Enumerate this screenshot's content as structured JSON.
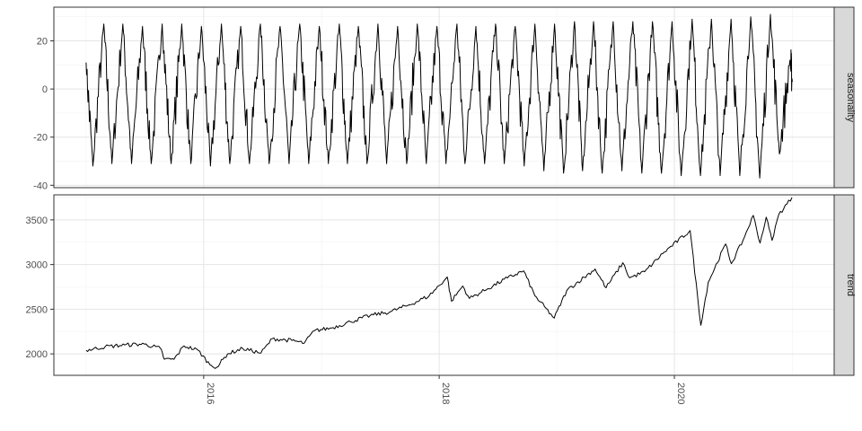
{
  "chart_data": {
    "type": "line",
    "layout": "faceted",
    "facet_strip_position": "right",
    "grid": true,
    "x_axis": {
      "range": [
        "2015-01-01",
        "2021-01-31"
      ],
      "ticks": [
        {
          "label": "2016",
          "date": "2016-01-01"
        },
        {
          "label": "2018",
          "date": "2018-01-01"
        },
        {
          "label": "2020",
          "date": "2020-01-01"
        }
      ],
      "label_rotation": "vertical"
    },
    "panels": [
      {
        "strip_label": "seasonality",
        "ylim": [
          -41,
          34
        ],
        "y_ticks": [
          20,
          0,
          -20,
          -40
        ],
        "y_tick_labels": [
          "20",
          "0",
          "-20",
          "-40"
        ],
        "period": "2 months",
        "peaks": [
          {
            "date": "2015-01-01",
            "value": 11
          },
          {
            "date": "2015-01-22",
            "value": -32
          },
          {
            "date": "2015-02-25",
            "value": 27
          },
          {
            "date": "2015-03-22",
            "value": -31
          },
          {
            "date": "2015-04-25",
            "value": 27
          },
          {
            "date": "2015-05-22",
            "value": -31
          },
          {
            "date": "2015-06-25",
            "value": 26
          },
          {
            "date": "2015-07-22",
            "value": -31
          },
          {
            "date": "2015-08-25",
            "value": 27
          },
          {
            "date": "2015-09-22",
            "value": -31
          },
          {
            "date": "2015-10-25",
            "value": 27
          },
          {
            "date": "2015-11-22",
            "value": -31
          },
          {
            "date": "2015-12-25",
            "value": 26
          },
          {
            "date": "2016-01-22",
            "value": -32
          },
          {
            "date": "2016-02-25",
            "value": 27
          },
          {
            "date": "2016-03-22",
            "value": -31
          },
          {
            "date": "2016-04-25",
            "value": 26
          },
          {
            "date": "2016-05-22",
            "value": -31
          },
          {
            "date": "2016-06-25",
            "value": 27
          },
          {
            "date": "2016-07-22",
            "value": -31
          },
          {
            "date": "2016-08-25",
            "value": 26
          },
          {
            "date": "2016-09-22",
            "value": -31
          },
          {
            "date": "2016-10-25",
            "value": 27
          },
          {
            "date": "2016-11-22",
            "value": -31
          },
          {
            "date": "2016-12-25",
            "value": 26
          },
          {
            "date": "2017-01-22",
            "value": -31
          },
          {
            "date": "2017-02-25",
            "value": 27
          },
          {
            "date": "2017-03-22",
            "value": -31
          },
          {
            "date": "2017-04-25",
            "value": 26
          },
          {
            "date": "2017-05-22",
            "value": -31
          },
          {
            "date": "2017-06-25",
            "value": 27
          },
          {
            "date": "2017-07-22",
            "value": -31
          },
          {
            "date": "2017-08-25",
            "value": 26
          },
          {
            "date": "2017-09-22",
            "value": -31
          },
          {
            "date": "2017-10-25",
            "value": 27
          },
          {
            "date": "2017-11-22",
            "value": -31
          },
          {
            "date": "2017-12-25",
            "value": 26
          },
          {
            "date": "2018-01-22",
            "value": -31
          },
          {
            "date": "2018-02-25",
            "value": 27
          },
          {
            "date": "2018-03-22",
            "value": -31
          },
          {
            "date": "2018-04-25",
            "value": 26
          },
          {
            "date": "2018-05-22",
            "value": -31
          },
          {
            "date": "2018-06-25",
            "value": 27
          },
          {
            "date": "2018-07-22",
            "value": -31
          },
          {
            "date": "2018-08-25",
            "value": 26
          },
          {
            "date": "2018-09-22",
            "value": -32
          },
          {
            "date": "2018-10-25",
            "value": 27
          },
          {
            "date": "2018-11-22",
            "value": -34
          },
          {
            "date": "2018-12-25",
            "value": 27
          },
          {
            "date": "2019-01-22",
            "value": -35
          },
          {
            "date": "2019-02-25",
            "value": 28
          },
          {
            "date": "2019-03-22",
            "value": -34
          },
          {
            "date": "2019-04-25",
            "value": 28
          },
          {
            "date": "2019-05-22",
            "value": -35
          },
          {
            "date": "2019-06-25",
            "value": 28
          },
          {
            "date": "2019-07-22",
            "value": -34
          },
          {
            "date": "2019-08-25",
            "value": 28
          },
          {
            "date": "2019-09-22",
            "value": -35
          },
          {
            "date": "2019-10-25",
            "value": 28
          },
          {
            "date": "2019-11-22",
            "value": -35
          },
          {
            "date": "2019-12-25",
            "value": 28
          },
          {
            "date": "2020-01-22",
            "value": -36
          },
          {
            "date": "2020-02-25",
            "value": 29
          },
          {
            "date": "2020-03-22",
            "value": -36
          },
          {
            "date": "2020-04-25",
            "value": 29
          },
          {
            "date": "2020-05-22",
            "value": -36
          },
          {
            "date": "2020-06-25",
            "value": 29
          },
          {
            "date": "2020-07-22",
            "value": -36
          },
          {
            "date": "2020-08-25",
            "value": 30
          },
          {
            "date": "2020-09-22",
            "value": -37
          },
          {
            "date": "2020-10-25",
            "value": 31
          },
          {
            "date": "2020-11-22",
            "value": -27
          },
          {
            "date": "2020-12-25",
            "value": 12
          },
          {
            "date": "2021-01-01",
            "value": 3
          }
        ]
      },
      {
        "strip_label": "trend",
        "ylim": [
          1760,
          3780
        ],
        "y_ticks": [
          3500,
          3000,
          2500,
          2000
        ],
        "y_tick_labels": [
          "3500",
          "3000",
          "2500",
          "2000"
        ],
        "points": [
          {
            "date": "2015-01-01",
            "value": 2040
          },
          {
            "date": "2015-03-01",
            "value": 2080
          },
          {
            "date": "2015-05-01",
            "value": 2100
          },
          {
            "date": "2015-07-01",
            "value": 2110
          },
          {
            "date": "2015-08-20",
            "value": 2060
          },
          {
            "date": "2015-09-01",
            "value": 1940
          },
          {
            "date": "2015-10-01",
            "value": 1940
          },
          {
            "date": "2015-11-01",
            "value": 2090
          },
          {
            "date": "2015-12-15",
            "value": 2040
          },
          {
            "date": "2016-01-20",
            "value": 1880
          },
          {
            "date": "2016-02-11",
            "value": 1850
          },
          {
            "date": "2016-03-15",
            "value": 2000
          },
          {
            "date": "2016-05-01",
            "value": 2060
          },
          {
            "date": "2016-06-27",
            "value": 2010
          },
          {
            "date": "2016-08-01",
            "value": 2170
          },
          {
            "date": "2016-10-01",
            "value": 2150
          },
          {
            "date": "2016-11-08",
            "value": 2120
          },
          {
            "date": "2016-12-10",
            "value": 2260
          },
          {
            "date": "2017-02-01",
            "value": 2290
          },
          {
            "date": "2017-04-01",
            "value": 2360
          },
          {
            "date": "2017-06-01",
            "value": 2430
          },
          {
            "date": "2017-08-01",
            "value": 2470
          },
          {
            "date": "2017-10-01",
            "value": 2550
          },
          {
            "date": "2017-12-01",
            "value": 2650
          },
          {
            "date": "2018-01-26",
            "value": 2860
          },
          {
            "date": "2018-02-08",
            "value": 2590
          },
          {
            "date": "2018-03-15",
            "value": 2760
          },
          {
            "date": "2018-04-05",
            "value": 2620
          },
          {
            "date": "2018-06-01",
            "value": 2730
          },
          {
            "date": "2018-08-01",
            "value": 2850
          },
          {
            "date": "2018-09-20",
            "value": 2930
          },
          {
            "date": "2018-10-25",
            "value": 2650
          },
          {
            "date": "2018-12-24",
            "value": 2400
          },
          {
            "date": "2019-02-01",
            "value": 2710
          },
          {
            "date": "2019-04-30",
            "value": 2950
          },
          {
            "date": "2019-06-03",
            "value": 2740
          },
          {
            "date": "2019-07-25",
            "value": 3020
          },
          {
            "date": "2019-08-15",
            "value": 2850
          },
          {
            "date": "2019-10-01",
            "value": 2920
          },
          {
            "date": "2019-12-01",
            "value": 3140
          },
          {
            "date": "2020-02-19",
            "value": 3380
          },
          {
            "date": "2020-03-23",
            "value": 2320
          },
          {
            "date": "2020-04-15",
            "value": 2800
          },
          {
            "date": "2020-06-08",
            "value": 3230
          },
          {
            "date": "2020-06-26",
            "value": 3010
          },
          {
            "date": "2020-08-01",
            "value": 3270
          },
          {
            "date": "2020-09-02",
            "value": 3550
          },
          {
            "date": "2020-09-23",
            "value": 3240
          },
          {
            "date": "2020-10-12",
            "value": 3530
          },
          {
            "date": "2020-10-30",
            "value": 3270
          },
          {
            "date": "2020-11-20",
            "value": 3560
          },
          {
            "date": "2020-12-31",
            "value": 3750
          }
        ]
      }
    ]
  }
}
